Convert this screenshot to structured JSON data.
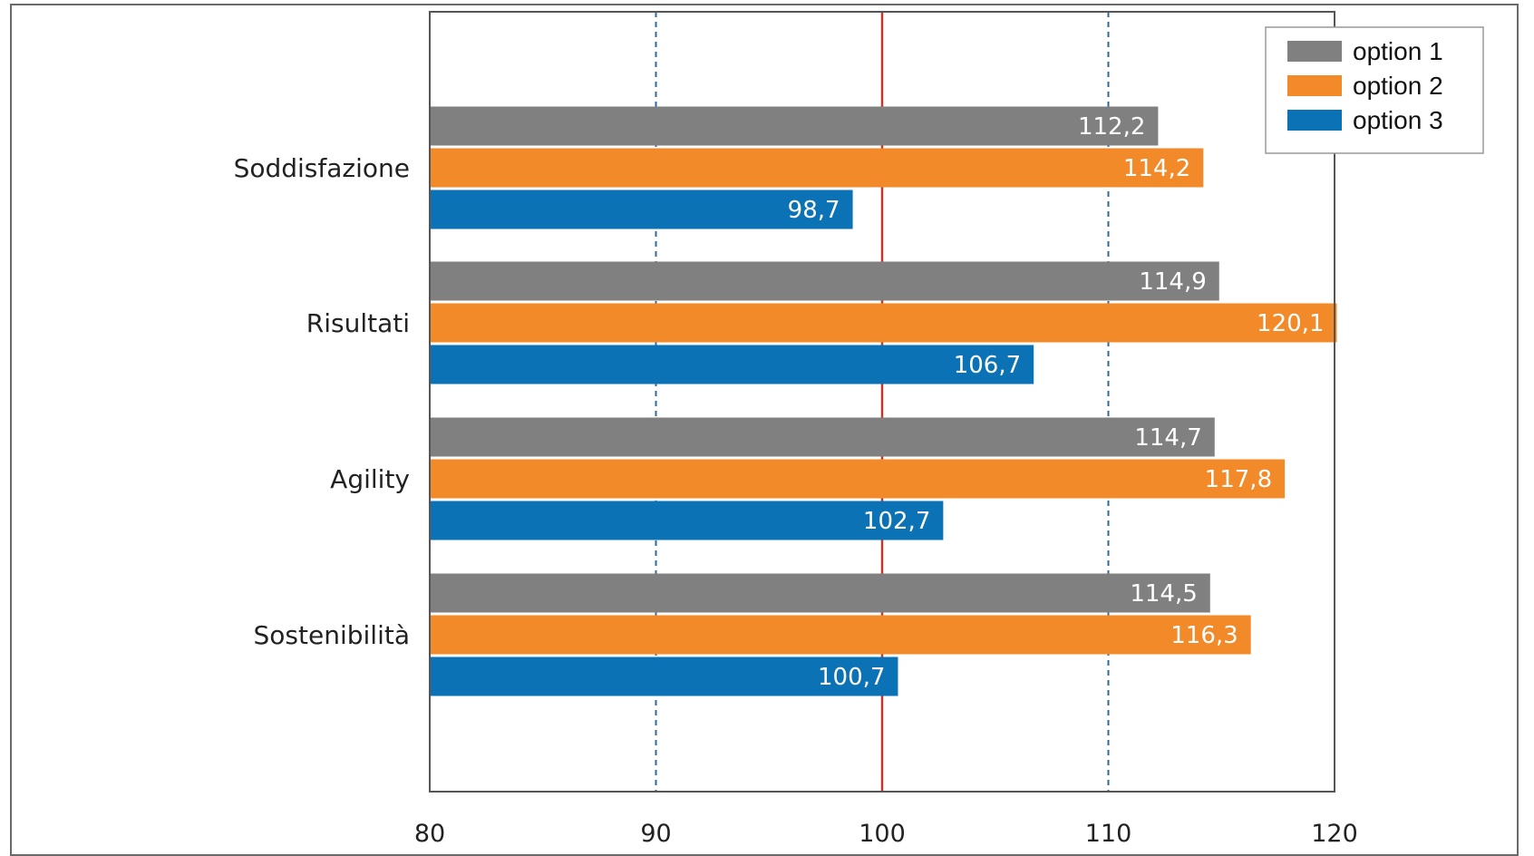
{
  "chart_data": {
    "type": "bar",
    "orientation": "horizontal",
    "categories": [
      "Soddisfazione",
      "Risultati",
      "Agility",
      "Sostenibilità"
    ],
    "series": [
      {
        "name": "option 1",
        "color": "#808080",
        "values": [
          112.2,
          114.9,
          114.7,
          114.5
        ],
        "labels": [
          "112,2",
          "114,9",
          "114,7",
          "114,5"
        ]
      },
      {
        "name": "option 2",
        "color": "#F28A2A",
        "values": [
          114.2,
          120.1,
          117.8,
          116.3
        ],
        "labels": [
          "114,2",
          "120,1",
          "117,8",
          "116,3"
        ]
      },
      {
        "name": "option 3",
        "color": "#0A72B5",
        "values": [
          98.7,
          106.7,
          102.7,
          100.7
        ],
        "labels": [
          "98,7",
          "106,7",
          "102,7",
          "100,7"
        ]
      }
    ],
    "xlim": [
      80,
      120
    ],
    "xticks": [
      "80",
      "90",
      "100",
      "110",
      "120"
    ],
    "reference_line": {
      "value": 100,
      "color": "#C0392B"
    },
    "gridlines": {
      "values": [
        90,
        110
      ],
      "style": "dashed",
      "color": "#2E6A9E"
    },
    "legend": "top-right",
    "title": "",
    "xlabel": "",
    "ylabel": ""
  }
}
